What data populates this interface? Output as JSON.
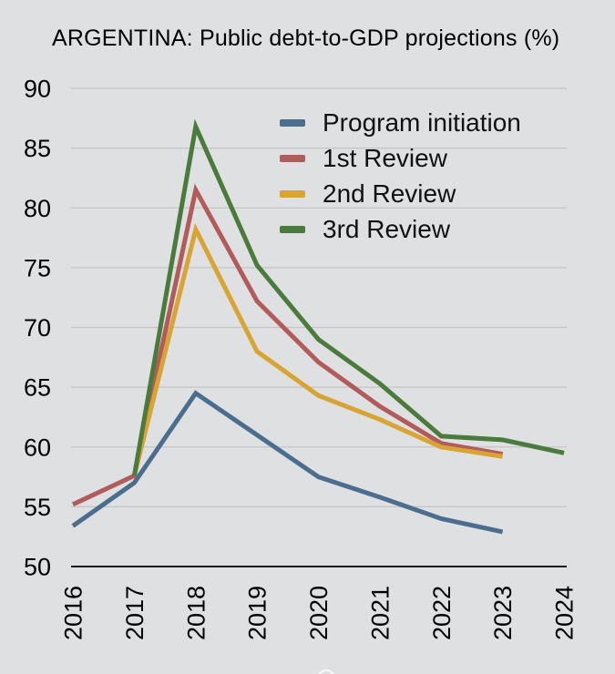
{
  "title": "ARGENTINA: Public debt-to-GDP projections (%)",
  "colors": {
    "background": "#dfe0e2",
    "gridline": "#c3c4c6",
    "axis": "#1a1a1a",
    "text": "#000000"
  },
  "chart_data": {
    "type": "line",
    "title": "ARGENTINA: Public debt-to-GDP projections (%)",
    "xlabel": "",
    "ylabel": "",
    "x": [
      2016,
      2017,
      2018,
      2019,
      2020,
      2021,
      2022,
      2023,
      2024
    ],
    "x_tick_labels": [
      "2016",
      "2017",
      "2018",
      "2019",
      "2020",
      "2021",
      "2022",
      "2023",
      "2024"
    ],
    "yticks": [
      50,
      55,
      60,
      65,
      70,
      75,
      80,
      85,
      90
    ],
    "ylim": [
      50,
      90
    ],
    "grid": true,
    "legend_position": "top-right",
    "series": [
      {
        "name": "Program initiation",
        "color": "#4c6e8e",
        "values": [
          53.4,
          57.0,
          64.5,
          61.0,
          57.5,
          55.8,
          54.0,
          52.9,
          null
        ]
      },
      {
        "name": "1st Review",
        "color": "#b25b5b",
        "values": [
          55.2,
          57.6,
          81.5,
          72.2,
          67.1,
          63.4,
          60.3,
          59.4,
          null
        ]
      },
      {
        "name": "2nd Review",
        "color": "#d8a433",
        "values": [
          null,
          57.6,
          78.2,
          68.0,
          64.3,
          62.3,
          60.0,
          59.2,
          null
        ]
      },
      {
        "name": "3rd Review",
        "color": "#4a7a3c",
        "values": [
          null,
          57.6,
          86.8,
          75.2,
          69.0,
          65.3,
          60.9,
          60.6,
          59.5
        ]
      }
    ]
  }
}
